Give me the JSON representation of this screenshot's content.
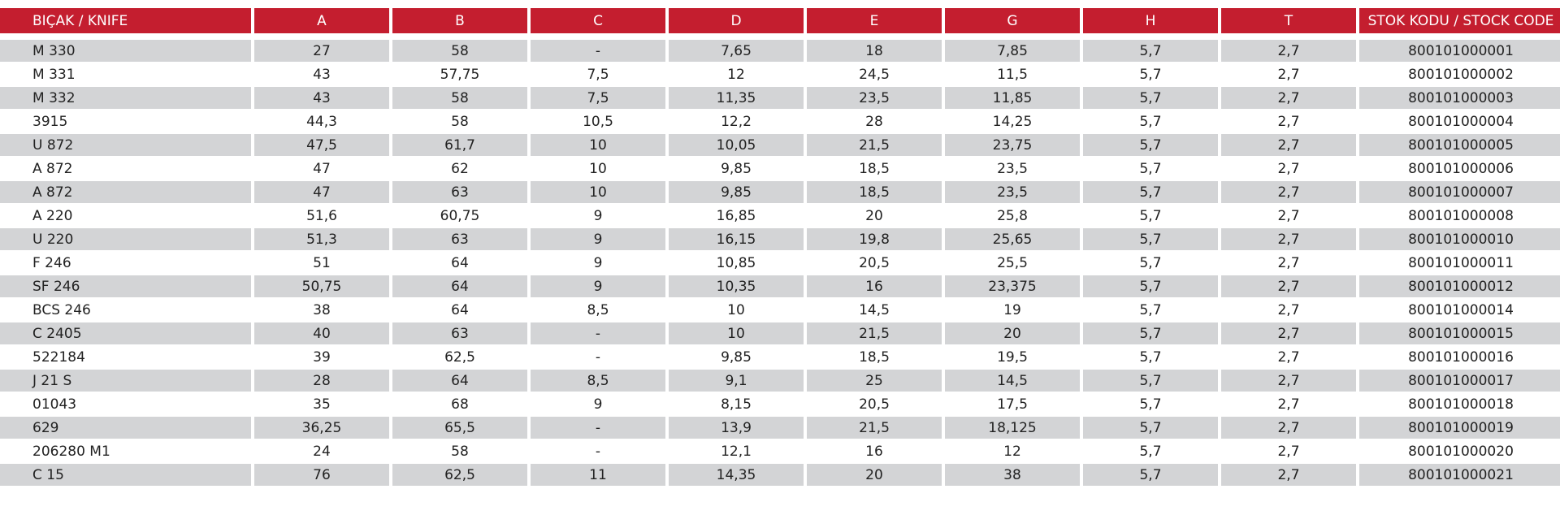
{
  "table": {
    "header": [
      "BIÇAK / KNIFE",
      "A",
      "B",
      "C",
      "D",
      "E",
      "G",
      "H",
      "T",
      "STOK KODU / STOCK CODE"
    ],
    "rows": [
      [
        "M 330",
        "27",
        "58",
        "-",
        "7,65",
        "18",
        "7,85",
        "5,7",
        "2,7",
        "800101000001"
      ],
      [
        "M 331",
        "43",
        "57,75",
        "7,5",
        "12",
        "24,5",
        "11,5",
        "5,7",
        "2,7",
        "800101000002"
      ],
      [
        "M 332",
        "43",
        "58",
        "7,5",
        "11,35",
        "23,5",
        "11,85",
        "5,7",
        "2,7",
        "800101000003"
      ],
      [
        "3915",
        "44,3",
        "58",
        "10,5",
        "12,2",
        "28",
        "14,25",
        "5,7",
        "2,7",
        "800101000004"
      ],
      [
        "U 872",
        "47,5",
        "61,7",
        "10",
        "10,05",
        "21,5",
        "23,75",
        "5,7",
        "2,7",
        "800101000005"
      ],
      [
        "A 872",
        "47",
        "62",
        "10",
        "9,85",
        "18,5",
        "23,5",
        "5,7",
        "2,7",
        "800101000006"
      ],
      [
        "A 872",
        "47",
        "63",
        "10",
        "9,85",
        "18,5",
        "23,5",
        "5,7",
        "2,7",
        "800101000007"
      ],
      [
        "A 220",
        "51,6",
        "60,75",
        "9",
        "16,85",
        "20",
        "25,8",
        "5,7",
        "2,7",
        "800101000008"
      ],
      [
        "U 220",
        "51,3",
        "63",
        "9",
        "16,15",
        "19,8",
        "25,65",
        "5,7",
        "2,7",
        "800101000010"
      ],
      [
        "F 246",
        "51",
        "64",
        "9",
        "10,85",
        "20,5",
        "25,5",
        "5,7",
        "2,7",
        "800101000011"
      ],
      [
        "SF 246",
        "50,75",
        "64",
        "9",
        "10,35",
        "16",
        "23,375",
        "5,7",
        "2,7",
        "800101000012"
      ],
      [
        "BCS 246",
        "38",
        "64",
        "8,5",
        "10",
        "14,5",
        "19",
        "5,7",
        "2,7",
        "800101000014"
      ],
      [
        "C 2405",
        "40",
        "63",
        "-",
        "10",
        "21,5",
        "20",
        "5,7",
        "2,7",
        "800101000015"
      ],
      [
        "522184",
        "39",
        "62,5",
        "-",
        "9,85",
        "18,5",
        "19,5",
        "5,7",
        "2,7",
        "800101000016"
      ],
      [
        "J 21 S",
        "28",
        "64",
        "8,5",
        "9,1",
        "25",
        "14,5",
        "5,7",
        "2,7",
        "800101000017"
      ],
      [
        "01043",
        "35",
        "68",
        "9",
        "8,15",
        "20,5",
        "17,5",
        "5,7",
        "2,7",
        "800101000018"
      ],
      [
        "629",
        "36,25",
        "65,5",
        "-",
        "13,9",
        "21,5",
        "18,125",
        "5,7",
        "2,7",
        "800101000019"
      ],
      [
        "206280 M1",
        "24",
        "58",
        "-",
        "12,1",
        "16",
        "12",
        "5,7",
        "2,7",
        "800101000020"
      ],
      [
        "C 15",
        "76",
        "62,5",
        "11",
        "14,35",
        "20",
        "38",
        "5,7",
        "2,7",
        "800101000021"
      ]
    ]
  }
}
